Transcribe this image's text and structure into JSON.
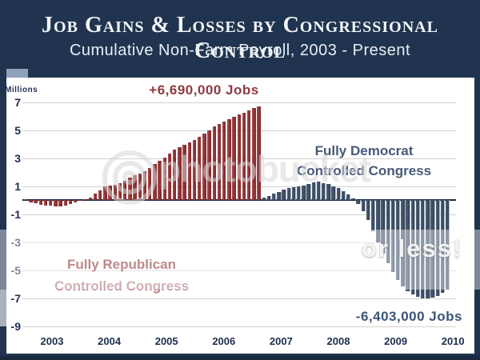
{
  "header": {
    "title": "Job Gains & Losses by Congressional Control",
    "subtitle": "Cumulative Non-Farm Payroll, 2003 - Present"
  },
  "watermark": {
    "logo_text": "photobucket",
    "tagline_text": "or less!"
  },
  "colors": {
    "background": "#20344f",
    "republican_bar": "#943b3d",
    "democrat_bar": "#44566e",
    "gridline": "#d2d2d2",
    "axis_text": "#1d2e4e",
    "peak_text": "#8e3a40",
    "trough_text": "#3c5578"
  },
  "chart_data": {
    "type": "bar",
    "title": "Cumulative Non-Farm Payroll, 2003 - Present",
    "unit_label": "Millions",
    "ylabel": "Millions",
    "xlabel": "",
    "ylim": [
      -9.8,
      7.6
    ],
    "grid": true,
    "y_ticks": [
      7,
      5,
      3,
      1,
      -1,
      -3,
      -5,
      -7,
      -9
    ],
    "x_labels": [
      "2003",
      "2004",
      "2005",
      "2006",
      "2007",
      "2008",
      "2009",
      "2010"
    ],
    "annotations": {
      "peak_label": "+6,690,000 Jobs",
      "trough_label": "-6,403,000 Jobs",
      "democrat_line1": "Fully Democrat",
      "democrat_line2": "Controlled Congress",
      "republican_line1": "Fully Republican",
      "republican_line2": "Controlled Congress"
    },
    "series": [
      {
        "name": "Fully Republican Controlled Congress",
        "color": "#943b3d",
        "start": "2003-01",
        "values": [
          0.05,
          -0.15,
          -0.25,
          -0.32,
          -0.38,
          -0.42,
          -0.45,
          -0.44,
          -0.4,
          -0.28,
          -0.18,
          -0.08,
          0.08,
          0.18,
          0.45,
          0.68,
          0.95,
          1.02,
          1.08,
          1.18,
          1.35,
          1.6,
          1.75,
          1.9,
          2.05,
          2.3,
          2.55,
          2.8,
          3.05,
          3.3,
          3.6,
          3.8,
          3.95,
          4.1,
          4.3,
          4.5,
          4.75,
          5.0,
          5.25,
          5.45,
          5.6,
          5.75,
          5.95,
          6.1,
          6.25,
          6.4,
          6.55,
          6.69
        ]
      },
      {
        "name": "Fully Democrat Controlled Congress",
        "color": "#44566e",
        "start": "2007-01",
        "values": [
          0.15,
          0.3,
          0.45,
          0.6,
          0.72,
          0.83,
          0.9,
          0.97,
          1.05,
          1.15,
          1.25,
          1.3,
          1.22,
          1.12,
          1.0,
          0.85,
          0.65,
          0.4,
          0.1,
          -0.3,
          -0.8,
          -1.45,
          -2.2,
          -3.0,
          -3.8,
          -4.5,
          -5.15,
          -5.7,
          -6.15,
          -6.5,
          -6.75,
          -6.9,
          -7.0,
          -7.0,
          -6.95,
          -6.85,
          -6.6,
          -6.4
        ]
      }
    ]
  }
}
